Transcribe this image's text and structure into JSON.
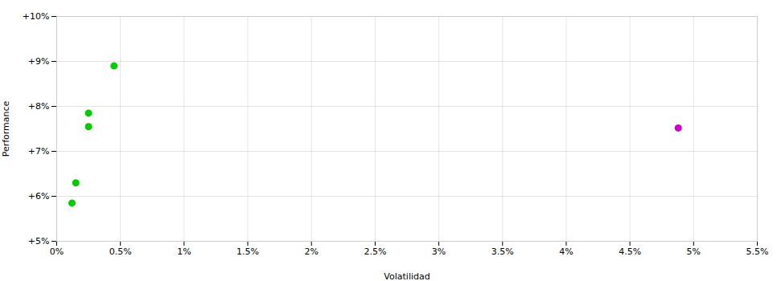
{
  "chart_data": {
    "type": "scatter",
    "xlabel": "Volatilidad",
    "ylabel": "Performance",
    "series": [
      {
        "color": "#00cc00",
        "x": [
          0.0045,
          0.0025,
          0.0025,
          0.0015,
          0.0012
        ],
        "values": [
          0.089,
          0.0785,
          0.0755,
          0.063,
          0.0585
        ]
      },
      {
        "color": "#cc00cc",
        "x": [
          0.0488
        ],
        "values": [
          0.0752
        ]
      }
    ],
    "xlim": [
      0,
      0.055
    ],
    "ylim": [
      0.05,
      0.1
    ],
    "xticks": [
      {
        "value": 0.0,
        "label": "0%"
      },
      {
        "value": 0.005,
        "label": "0.5%"
      },
      {
        "value": 0.01,
        "label": "1%"
      },
      {
        "value": 0.015,
        "label": "1.5%"
      },
      {
        "value": 0.02,
        "label": "2%"
      },
      {
        "value": 0.025,
        "label": "2.5%"
      },
      {
        "value": 0.03,
        "label": "3%"
      },
      {
        "value": 0.035,
        "label": "3.5%"
      },
      {
        "value": 0.04,
        "label": "4%"
      },
      {
        "value": 0.045,
        "label": "4.5%"
      },
      {
        "value": 0.05,
        "label": "5%"
      },
      {
        "value": 0.055,
        "label": "5.5%"
      }
    ],
    "yticks": [
      {
        "value": 0.05,
        "label": "+5%"
      },
      {
        "value": 0.06,
        "label": "+6%"
      },
      {
        "value": 0.07,
        "label": "+7%"
      },
      {
        "value": 0.08,
        "label": "+8%"
      },
      {
        "value": 0.09,
        "label": "+9%"
      },
      {
        "value": 0.1,
        "label": "+10%"
      }
    ],
    "grid": true
  }
}
